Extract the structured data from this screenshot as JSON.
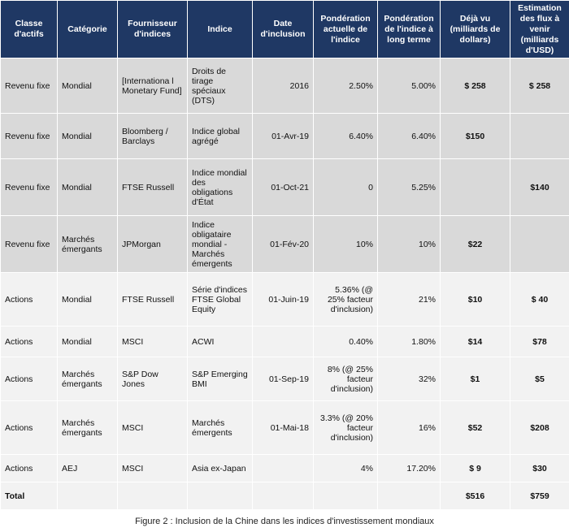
{
  "headers": [
    "Classe d'actifs",
    "Catégorie",
    "Fournisseur d'indices",
    "Indice",
    "Date d'inclusion",
    "Pondération actuelle de l'indice",
    "Pondération de l'indice à long terme",
    "Déjà vu (milliards de dollars)",
    "Estimation des flux à venir (milliards d'USD)"
  ],
  "rows": [
    [
      "Revenu fixe",
      "Mondial",
      "[Internationa l Monetary Fund]",
      "Droits de tirage spéciaux (DTS)",
      "2016",
      "2.50%",
      "5.00%",
      "$ 258",
      "$ 258"
    ],
    [
      "Revenu fixe",
      "Mondial",
      "Bloomberg / Barclays",
      "Indice global agrégé",
      "01-Avr-19",
      "6.40%",
      "6.40%",
      "$150",
      ""
    ],
    [
      "Revenu fixe",
      "Mondial",
      "FTSE Russell",
      "Indice mondial des obligations d'État",
      "01-Oct-21",
      "0",
      "5.25%",
      "",
      "$140"
    ],
    [
      "Revenu fixe",
      "Marchés émergants",
      "JPMorgan",
      "Indice obligataire mondial - Marchés émergents",
      "01-Fév-20",
      "10%",
      "10%",
      "$22",
      ""
    ],
    [
      "Actions",
      "Mondial",
      "FTSE Russell",
      "Série d'indices FTSE Global Equity",
      "01-Juin-19",
      "5.36% (@ 25% facteur d'inclusion)",
      "21%",
      "$10",
      "$ 40"
    ],
    [
      "Actions",
      "Mondial",
      "MSCI",
      "ACWI",
      "",
      "0.40%",
      "1.80%",
      "$14",
      "$78"
    ],
    [
      "Actions",
      "Marchés émergants",
      "S&P Dow Jones",
      "S&P Emerging BMI",
      "01-Sep-19",
      "8% (@ 25% facteur d'inclusion)",
      "32%",
      "$1",
      "$5"
    ],
    [
      "Actions",
      "Marchés émergants",
      "MSCI",
      "Marchés émergents",
      "01-Mai-18",
      "3.3% (@ 20% facteur d'inclusion)",
      "16%",
      "$52",
      "$208"
    ],
    [
      "Actions",
      "AEJ",
      "MSCI",
      "Asia ex-Japan",
      "",
      "4%",
      "17.20%",
      "$ 9",
      "$30"
    ]
  ],
  "total": [
    "Total",
    "",
    "",
    "",
    "",
    "",
    "",
    "$516",
    "$759"
  ],
  "caption": "Figure 2 : Inclusion de la Chine dans les indices d'investissement mondiaux"
}
